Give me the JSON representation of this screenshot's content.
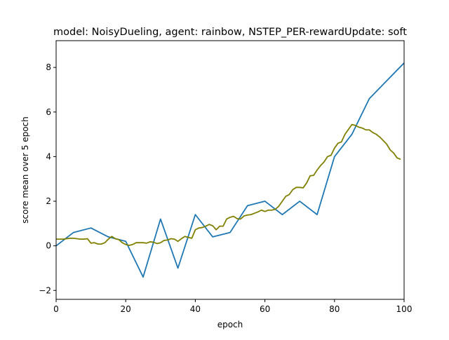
{
  "chart_data": {
    "type": "line",
    "title": "model: NoisyDueling, agent: rainbow, NSTEP_PER-rewardUpdate: soft",
    "xlabel": "epoch",
    "ylabel": "score mean over 5 epoch",
    "xlim": [
      0,
      100
    ],
    "ylim": [
      -2.4,
      9.2
    ],
    "xticks": [
      0,
      20,
      40,
      60,
      80,
      100
    ],
    "yticks": [
      -2,
      0,
      2,
      4,
      6,
      8
    ],
    "xtick_labels": [
      "0",
      "20",
      "40",
      "60",
      "80",
      "100"
    ],
    "ytick_labels": [
      "−2",
      "0",
      "2",
      "4",
      "6",
      "8"
    ],
    "grid": false,
    "legend": "none",
    "series": [
      {
        "color": "#1f77b4",
        "x": [
          0,
          5,
          10,
          15,
          20,
          25,
          30,
          35,
          40,
          45,
          50,
          55,
          60,
          65,
          70,
          75,
          80,
          85,
          90,
          95,
          100
        ],
        "y": [
          0.0,
          0.6,
          0.8,
          0.4,
          0.2,
          -1.4,
          1.2,
          -1.0,
          1.4,
          0.4,
          0.6,
          1.8,
          2.0,
          1.4,
          2.0,
          1.4,
          4.0,
          5.0,
          6.6,
          7.4,
          8.2
        ]
      },
      {
        "color": "#808000",
        "x": [
          0,
          1,
          2,
          3,
          4,
          5,
          6,
          7,
          8,
          9,
          10,
          11,
          12,
          13,
          14,
          15,
          16,
          17,
          18,
          19,
          20,
          21,
          22,
          23,
          24,
          25,
          26,
          27,
          28,
          29,
          30,
          31,
          32,
          33,
          34,
          35,
          36,
          37,
          38,
          39,
          40,
          41,
          42,
          43,
          44,
          45,
          46,
          47,
          48,
          49,
          50,
          51,
          52,
          53,
          54,
          55,
          56,
          57,
          58,
          59,
          60,
          61,
          62,
          63,
          64,
          65,
          66,
          67,
          68,
          69,
          70,
          71,
          72,
          73,
          74,
          75,
          76,
          77,
          78,
          79,
          80,
          81,
          82,
          83,
          84,
          85,
          86,
          87,
          88,
          89,
          90,
          91,
          92,
          93,
          94,
          95,
          96,
          97,
          98,
          99
        ],
        "y": [
          0.3,
          0.3,
          0.3,
          0.32,
          0.34,
          0.34,
          0.32,
          0.3,
          0.3,
          0.32,
          0.12,
          0.14,
          0.08,
          0.08,
          0.14,
          0.3,
          0.42,
          0.32,
          0.28,
          0.14,
          0.06,
          0.02,
          0.06,
          0.14,
          0.14,
          0.14,
          0.12,
          0.18,
          0.16,
          0.1,
          0.14,
          0.24,
          0.26,
          0.32,
          0.3,
          0.2,
          0.32,
          0.42,
          0.38,
          0.34,
          0.72,
          0.8,
          0.82,
          0.88,
          0.96,
          0.9,
          0.72,
          0.88,
          0.88,
          1.2,
          1.28,
          1.32,
          1.22,
          1.2,
          1.34,
          1.38,
          1.4,
          1.46,
          1.52,
          1.6,
          1.54,
          1.6,
          1.6,
          1.64,
          1.78,
          2.0,
          2.22,
          2.3,
          2.52,
          2.62,
          2.62,
          2.6,
          2.82,
          3.14,
          3.16,
          3.4,
          3.6,
          3.76,
          4.0,
          4.06,
          4.38,
          4.6,
          4.66,
          5.0,
          5.22,
          5.44,
          5.4,
          5.32,
          5.28,
          5.2,
          5.2,
          5.08,
          5.0,
          4.88,
          4.72,
          4.56,
          4.3,
          4.16,
          3.94,
          3.88
        ]
      }
    ]
  }
}
